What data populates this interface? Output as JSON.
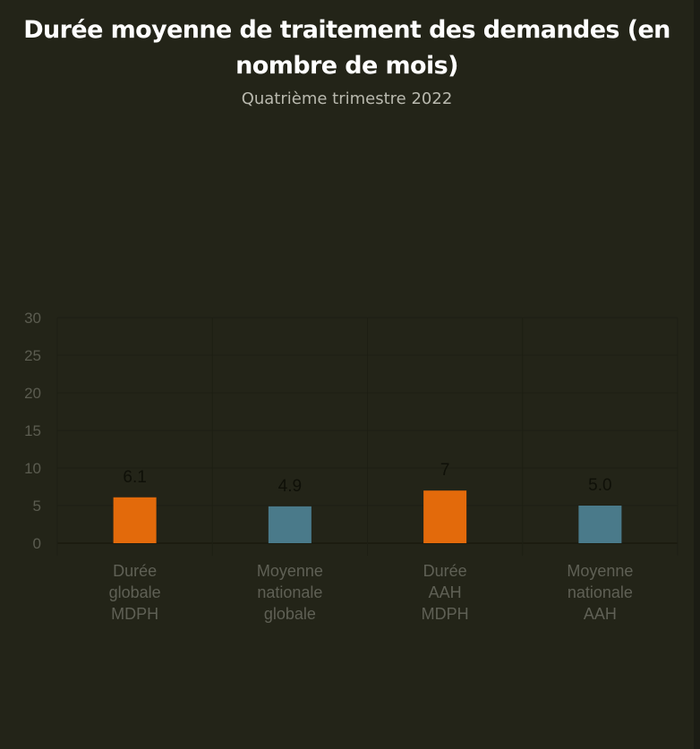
{
  "header": {
    "title": "Durée moyenne de traitement des demandes (en nombre de mois)",
    "subtitle": "Quatrième trimestre 2022"
  },
  "chart_data": {
    "type": "bar",
    "title": "Durée moyenne de traitement des demandes (en nombre de mois)",
    "subtitle": "Quatrième trimestre 2022",
    "categories": [
      [
        "Durée",
        "globale",
        "MDPH"
      ],
      [
        "Moyenne",
        "nationale",
        "globale"
      ],
      [
        "Durée",
        "AAH",
        "MDPH"
      ],
      [
        "Moyenne",
        "nationale",
        "AAH"
      ]
    ],
    "values": [
      6.1,
      4.9,
      7,
      5.0
    ],
    "data_labels": [
      "6.1",
      "4.9",
      "7",
      "5.0"
    ],
    "bar_colors": [
      "#e36a0b",
      "#4a7a8a",
      "#e36a0b",
      "#4a7a8a"
    ],
    "ylim": [
      0,
      30
    ],
    "yticks": [
      0,
      5,
      10,
      15,
      20,
      25,
      30
    ],
    "grid": true,
    "legend": "none",
    "xlabel": "",
    "ylabel": ""
  }
}
